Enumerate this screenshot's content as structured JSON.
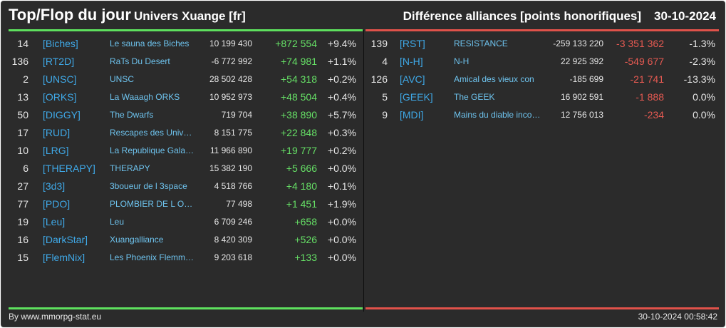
{
  "header": {
    "title": "Top/Flop du jour",
    "universe": "Univers Xuange [fr]",
    "metric": "Différence alliances [points honorifiques]",
    "date": "30-10-2024"
  },
  "colors": {
    "positive": "#66e066",
    "negative": "#e65a52",
    "tag": "#3fa9e8",
    "name": "#6ec3ee"
  },
  "top": [
    {
      "rank": "14",
      "tag": "[Biches]",
      "name": "Le sauna des Biches",
      "total": "10 199 430",
      "diff": "+872 554",
      "pct": "+9.4%"
    },
    {
      "rank": "136",
      "tag": "[RT2D]",
      "name": "RaTs Du Desert",
      "total": "-6 772 992",
      "diff": "+74 981",
      "pct": "+1.1%"
    },
    {
      "rank": "2",
      "tag": "[UNSC]",
      "name": "UNSC",
      "total": "28 502 428",
      "diff": "+54 318",
      "pct": "+0.2%"
    },
    {
      "rank": "13",
      "tag": "[ORKS]",
      "name": "La Waaagh ORKS",
      "total": "10 952 973",
      "diff": "+48 504",
      "pct": "+0.4%"
    },
    {
      "rank": "50",
      "tag": "[DIGGY]",
      "name": "The Dwarfs",
      "total": "719 704",
      "diff": "+38 890",
      "pct": "+5.7%"
    },
    {
      "rank": "17",
      "tag": "[RUD]",
      "name": "Rescapes des Univers",
      "total": "8 151 775",
      "diff": "+22 848",
      "pct": "+0.3%"
    },
    {
      "rank": "10",
      "tag": "[LRG]",
      "name": "La Republique Galactique",
      "total": "11 966 890",
      "diff": "+19 777",
      "pct": "+0.2%"
    },
    {
      "rank": "6",
      "tag": "[THERAPY]",
      "name": "THERAPY",
      "total": "15 382 190",
      "diff": "+5 666",
      "pct": "+0.0%"
    },
    {
      "rank": "27",
      "tag": "[3d3]",
      "name": "3boueur de l 3space",
      "total": "4 518 766",
      "diff": "+4 180",
      "pct": "+0.1%"
    },
    {
      "rank": "77",
      "tag": "[PDO]",
      "name": "PLOMBIER DE L OUEST",
      "total": "77 498",
      "diff": "+1 451",
      "pct": "+1.9%"
    },
    {
      "rank": "19",
      "tag": "[Leu]",
      "name": "Leu",
      "total": "6 709 246",
      "diff": "+658",
      "pct": "+0.0%"
    },
    {
      "rank": "16",
      "tag": "[DarkStar]",
      "name": "Xuangalliance",
      "total": "8 420 309",
      "diff": "+526",
      "pct": "+0.0%"
    },
    {
      "rank": "15",
      "tag": "[FlemNix]",
      "name": "Les Phoenix Flemmards",
      "total": "9 203 618",
      "diff": "+133",
      "pct": "+0.0%"
    }
  ],
  "flop": [
    {
      "rank": "139",
      "tag": "[RST]",
      "name": "RESISTANCE",
      "total": "-259 133 220",
      "diff": "-3 351 362",
      "pct": "-1.3%"
    },
    {
      "rank": "4",
      "tag": "[N-H]",
      "name": "N-H",
      "total": "22 925 392",
      "diff": "-549 677",
      "pct": "-2.3%"
    },
    {
      "rank": "126",
      "tag": "[AVC]",
      "name": "Amical des vieux con",
      "total": "-185 699",
      "diff": "-21 741",
      "pct": "-13.3%"
    },
    {
      "rank": "5",
      "tag": "[GEEK]",
      "name": "The GEEK",
      "total": "16 902 591",
      "diff": "-1 888",
      "pct": "0.0%"
    },
    {
      "rank": "9",
      "tag": "[MDI]",
      "name": "Mains du diable incognito",
      "total": "12 756 013",
      "diff": "-234",
      "pct": "0.0%"
    }
  ],
  "footer": {
    "credit": "By www.mmorpg-stat.eu",
    "timestamp": "30-10-2024 00:58:42"
  }
}
